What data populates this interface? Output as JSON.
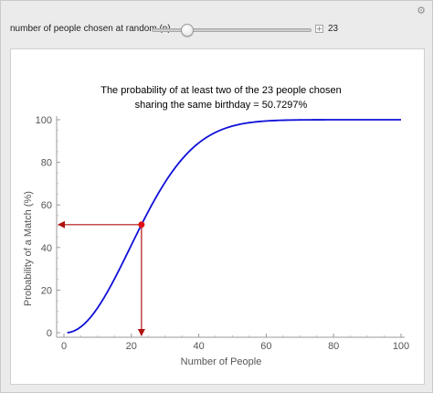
{
  "window": {
    "corner_icon": "gear-icon"
  },
  "controls": {
    "slider_label": "number of people chosen at random (n)",
    "slider_min": 1,
    "slider_max": 100,
    "slider_value": 23,
    "value_text": "23",
    "plus_icon": "plus-icon"
  },
  "plot": {
    "title_line1": "The probability of at least two of the 23 people chosen",
    "title_line2": "sharing the same birthday = 50.7297%"
  },
  "chart_data": {
    "type": "line",
    "xlabel": "Number of People",
    "ylabel": "Probability of a Match (%)",
    "xlim": [
      0,
      100
    ],
    "ylim": [
      0,
      100
    ],
    "x_ticks": [
      0,
      20,
      40,
      60,
      80,
      100
    ],
    "y_ticks": [
      0,
      20,
      40,
      60,
      80,
      100
    ],
    "grid": false,
    "series": [
      {
        "color": "#1010d8",
        "formula": "100 * (1 - prod_{k=0}^{n-1} (365-k)/365)",
        "x_start": 1,
        "x_end": 100
      }
    ],
    "highlight_point": {
      "x": 23,
      "y": 50.7297,
      "color": "#e01010"
    },
    "arrow_color": "#b01010"
  }
}
